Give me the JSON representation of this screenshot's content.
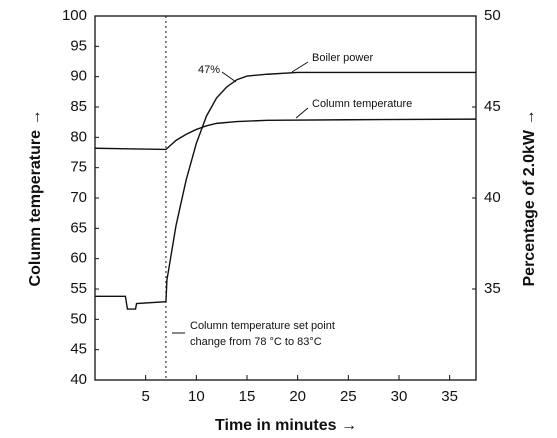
{
  "chart_data": {
    "type": "line",
    "xlabel": "Time in minutes →",
    "ylabel": "Column temperature →",
    "y2label": "Percentage of 2.0kW →",
    "xlim": [
      0,
      37.6
    ],
    "xticks": [
      5,
      10,
      15,
      20,
      25,
      30,
      35
    ],
    "ylim": [
      40,
      100
    ],
    "yticks": [
      40,
      45,
      50,
      55,
      60,
      65,
      70,
      75,
      80,
      85,
      90,
      95,
      100
    ],
    "y2lim": [
      30,
      50
    ],
    "y2ticks": [
      35,
      40,
      45,
      50
    ],
    "marker_x": 7,
    "series": [
      {
        "name": "Boiler power",
        "color": "#111111",
        "axis": "y2",
        "x": [
          0,
          3,
          3.2,
          4,
          4.1,
          7,
          7.1,
          8,
          9,
          10,
          11,
          12,
          13,
          14,
          15,
          17,
          20,
          30,
          37.6
        ],
        "values": [
          34.6,
          34.6,
          33.9,
          33.9,
          34.2,
          34.3,
          35.5,
          38.5,
          41,
          43,
          44.5,
          45.5,
          46.1,
          46.5,
          46.7,
          46.8,
          46.9,
          46.9,
          46.9
        ]
      },
      {
        "name": "Column temperature",
        "color": "#111111",
        "x": [
          0,
          7,
          8,
          9,
          10,
          11,
          12,
          14,
          17,
          25,
          37.6
        ],
        "values": [
          78.2,
          78,
          79.5,
          80.5,
          81.3,
          81.9,
          82.3,
          82.6,
          82.8,
          82.9,
          83
        ]
      }
    ],
    "annotations": [
      "47%",
      "Column temperature set point",
      "change from 78 °C to 83°C"
    ]
  }
}
